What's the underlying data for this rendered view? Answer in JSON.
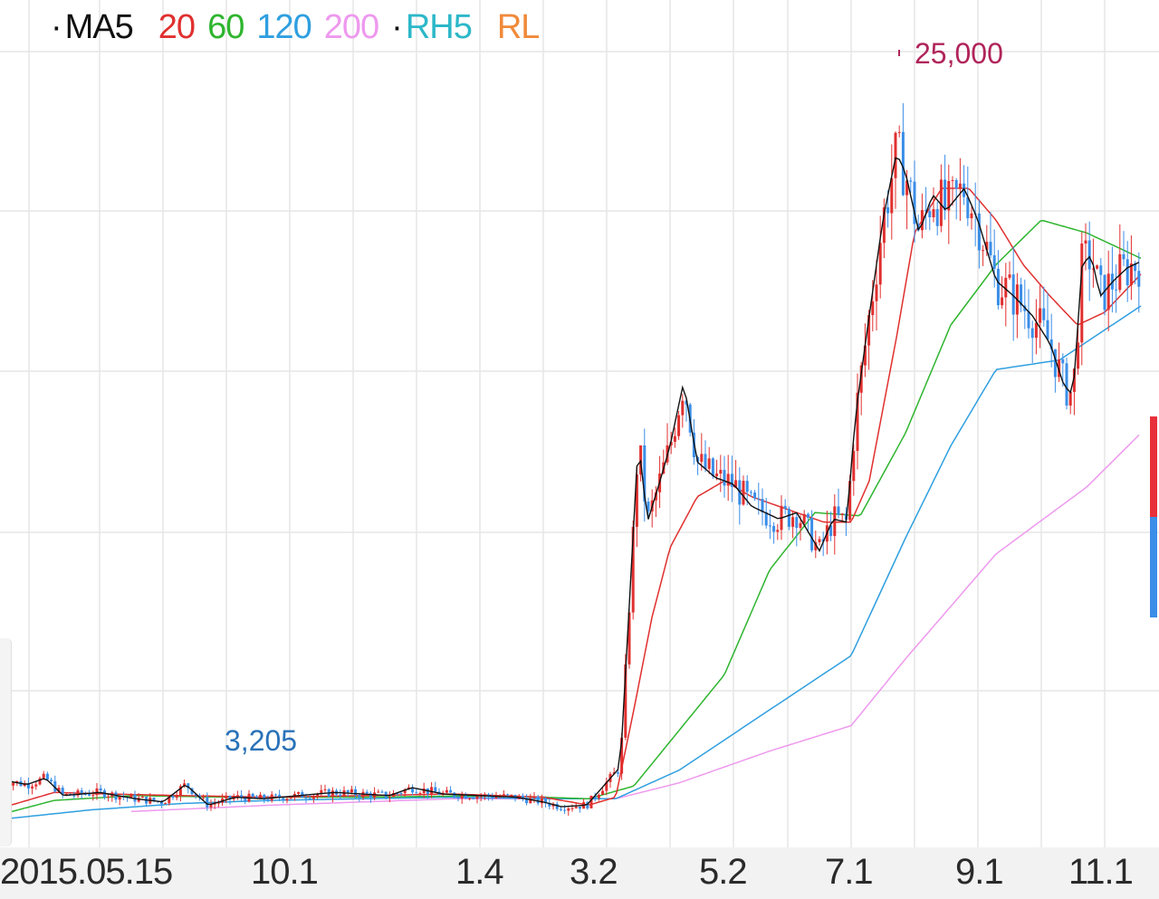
{
  "legend": {
    "items": [
      {
        "label": "MA5",
        "color": "#111111",
        "dot": true
      },
      {
        "label": "20",
        "color": "#e0302f"
      },
      {
        "label": "60",
        "color": "#2fb52f"
      },
      {
        "label": "120",
        "color": "#2f9fe0"
      },
      {
        "label": "200",
        "color": "#ee99ee"
      },
      {
        "label": "RH5",
        "color": "#2cb8c8",
        "dot": true
      },
      {
        "label": "RL",
        "color": "#f08a3a"
      }
    ]
  },
  "chart_data": {
    "type": "candlestick",
    "x_tick_labels": [
      "2015.05.15",
      "10.1",
      "1.4",
      "3.2",
      "5.2",
      "7.1",
      "9.1",
      "11.1"
    ],
    "annotations": {
      "max_label": "25,000",
      "max_value": 25000,
      "min_label": "3,205",
      "min_value": 3205
    },
    "ylim": [
      1800,
      27000
    ],
    "grid": true,
    "colors": {
      "up": "#e0302f",
      "down": "#3a8ee8",
      "ma5": "#111111",
      "ma20": "#e0302f",
      "ma60": "#2fb52f",
      "ma120": "#2f9fe0",
      "ma200": "#ee99ee",
      "max_label": "#b0245a",
      "min_label": "#2a72b8"
    },
    "close_series": [
      {
        "t": 0,
        "v": 4100
      },
      {
        "t": 30,
        "v": 3950
      },
      {
        "t": 50,
        "v": 4150
      },
      {
        "t": 70,
        "v": 3600
      },
      {
        "t": 110,
        "v": 3700
      },
      {
        "t": 150,
        "v": 3500
      },
      {
        "t": 180,
        "v": 3400
      },
      {
        "t": 205,
        "v": 3950
      },
      {
        "t": 230,
        "v": 3300
      },
      {
        "t": 260,
        "v": 3550
      },
      {
        "t": 290,
        "v": 3500
      },
      {
        "t": 330,
        "v": 3600
      },
      {
        "t": 370,
        "v": 3700
      },
      {
        "t": 400,
        "v": 3650
      },
      {
        "t": 430,
        "v": 3600
      },
      {
        "t": 455,
        "v": 3850
      },
      {
        "t": 490,
        "v": 3650
      },
      {
        "t": 530,
        "v": 3600
      },
      {
        "t": 570,
        "v": 3550
      },
      {
        "t": 600,
        "v": 3400
      },
      {
        "t": 620,
        "v": 3250
      },
      {
        "t": 648,
        "v": 3300
      },
      {
        "t": 665,
        "v": 3850
      },
      {
        "t": 685,
        "v": 4500
      },
      {
        "t": 695,
        "v": 9600
      },
      {
        "t": 705,
        "v": 14800
      },
      {
        "t": 715,
        "v": 12200
      },
      {
        "t": 730,
        "v": 13600
      },
      {
        "t": 740,
        "v": 14600
      },
      {
        "t": 755,
        "v": 16600
      },
      {
        "t": 770,
        "v": 14100
      },
      {
        "t": 790,
        "v": 13600
      },
      {
        "t": 810,
        "v": 13400
      },
      {
        "t": 830,
        "v": 12700
      },
      {
        "t": 860,
        "v": 12300
      },
      {
        "t": 880,
        "v": 12500
      },
      {
        "t": 905,
        "v": 11300
      },
      {
        "t": 920,
        "v": 12300
      },
      {
        "t": 935,
        "v": 12200
      },
      {
        "t": 945,
        "v": 15600
      },
      {
        "t": 960,
        "v": 18700
      },
      {
        "t": 975,
        "v": 21700
      },
      {
        "t": 990,
        "v": 23800
      },
      {
        "t": 1000,
        "v": 23200
      },
      {
        "t": 1015,
        "v": 21300
      },
      {
        "t": 1030,
        "v": 22500
      },
      {
        "t": 1045,
        "v": 22000
      },
      {
        "t": 1065,
        "v": 22700
      },
      {
        "t": 1080,
        "v": 21700
      },
      {
        "t": 1100,
        "v": 19800
      },
      {
        "t": 1120,
        "v": 19300
      },
      {
        "t": 1140,
        "v": 18700
      },
      {
        "t": 1160,
        "v": 17800
      },
      {
        "t": 1175,
        "v": 16500
      },
      {
        "t": 1185,
        "v": 16200
      },
      {
        "t": 1195,
        "v": 20300
      },
      {
        "t": 1205,
        "v": 20600
      },
      {
        "t": 1215,
        "v": 19300
      },
      {
        "t": 1230,
        "v": 19800
      },
      {
        "t": 1245,
        "v": 20200
      },
      {
        "t": 1260,
        "v": 20400
      }
    ],
    "ma20_series": [
      {
        "t": 0,
        "v": 3200
      },
      {
        "t": 60,
        "v": 3700
      },
      {
        "t": 120,
        "v": 3650
      },
      {
        "t": 200,
        "v": 3600
      },
      {
        "t": 300,
        "v": 3550
      },
      {
        "t": 400,
        "v": 3600
      },
      {
        "t": 500,
        "v": 3650
      },
      {
        "t": 600,
        "v": 3550
      },
      {
        "t": 650,
        "v": 3300
      },
      {
        "t": 680,
        "v": 3550
      },
      {
        "t": 700,
        "v": 6300
      },
      {
        "t": 720,
        "v": 9200
      },
      {
        "t": 740,
        "v": 11400
      },
      {
        "t": 770,
        "v": 13000
      },
      {
        "t": 800,
        "v": 13500
      },
      {
        "t": 830,
        "v": 13000
      },
      {
        "t": 870,
        "v": 12600
      },
      {
        "t": 910,
        "v": 12200
      },
      {
        "t": 940,
        "v": 12200
      },
      {
        "t": 960,
        "v": 13500
      },
      {
        "t": 990,
        "v": 18000
      },
      {
        "t": 1010,
        "v": 21300
      },
      {
        "t": 1040,
        "v": 22700
      },
      {
        "t": 1070,
        "v": 22700
      },
      {
        "t": 1100,
        "v": 21700
      },
      {
        "t": 1130,
        "v": 20300
      },
      {
        "t": 1160,
        "v": 19300
      },
      {
        "t": 1190,
        "v": 18400
      },
      {
        "t": 1220,
        "v": 18800
      },
      {
        "t": 1260,
        "v": 20000
      }
    ],
    "ma60_series": [
      {
        "t": 0,
        "v": 3000
      },
      {
        "t": 60,
        "v": 3450
      },
      {
        "t": 150,
        "v": 3600
      },
      {
        "t": 250,
        "v": 3550
      },
      {
        "t": 400,
        "v": 3550
      },
      {
        "t": 550,
        "v": 3600
      },
      {
        "t": 650,
        "v": 3500
      },
      {
        "t": 700,
        "v": 3900
      },
      {
        "t": 800,
        "v": 7400
      },
      {
        "t": 850,
        "v": 10700
      },
      {
        "t": 900,
        "v": 12500
      },
      {
        "t": 950,
        "v": 12400
      },
      {
        "t": 1000,
        "v": 15000
      },
      {
        "t": 1050,
        "v": 18400
      },
      {
        "t": 1100,
        "v": 20300
      },
      {
        "t": 1150,
        "v": 21700
      },
      {
        "t": 1200,
        "v": 21300
      },
      {
        "t": 1260,
        "v": 20500
      }
    ],
    "ma120_series": [
      {
        "t": 0,
        "v": 2850
      },
      {
        "t": 100,
        "v": 3150
      },
      {
        "t": 200,
        "v": 3350
      },
      {
        "t": 300,
        "v": 3450
      },
      {
        "t": 400,
        "v": 3500
      },
      {
        "t": 500,
        "v": 3550
      },
      {
        "t": 600,
        "v": 3500
      },
      {
        "t": 680,
        "v": 3500
      },
      {
        "t": 750,
        "v": 4400
      },
      {
        "t": 850,
        "v": 6300
      },
      {
        "t": 940,
        "v": 8000
      },
      {
        "t": 1000,
        "v": 11700
      },
      {
        "t": 1050,
        "v": 14600
      },
      {
        "t": 1100,
        "v": 17000
      },
      {
        "t": 1170,
        "v": 17300
      },
      {
        "t": 1260,
        "v": 19000
      }
    ],
    "ma200_series": [
      {
        "t": 145,
        "v": 3100
      },
      {
        "t": 300,
        "v": 3300
      },
      {
        "t": 500,
        "v": 3500
      },
      {
        "t": 680,
        "v": 3500
      },
      {
        "t": 750,
        "v": 4000
      },
      {
        "t": 850,
        "v": 5000
      },
      {
        "t": 940,
        "v": 5800
      },
      {
        "t": 1000,
        "v": 7900
      },
      {
        "t": 1100,
        "v": 11200
      },
      {
        "t": 1200,
        "v": 13300
      },
      {
        "t": 1260,
        "v": 15000
      }
    ]
  }
}
